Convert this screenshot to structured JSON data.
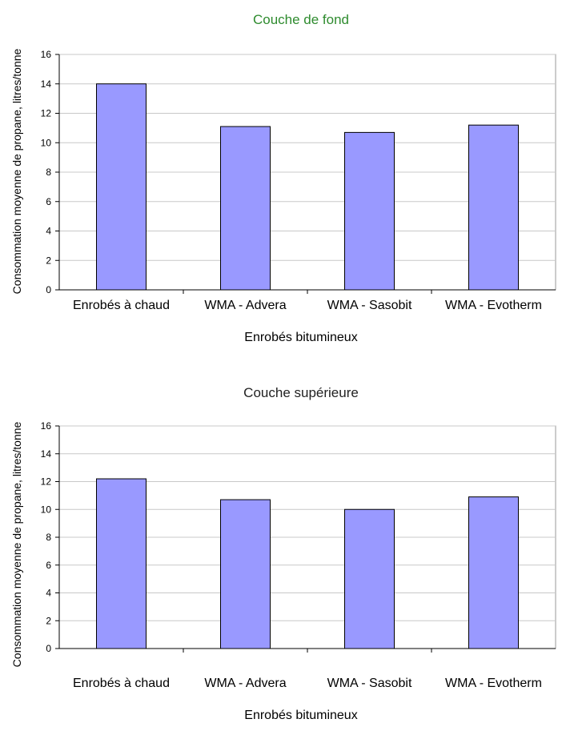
{
  "chart_data": [
    {
      "type": "bar",
      "title": "Couche de fond",
      "title_color": "#2e8b2e",
      "xlabel": "Enrobés bitumineux",
      "ylabel": "Consommation moyenne de propane, litres/tonne",
      "categories": [
        "Enrobés à chaud",
        "WMA - Advera",
        "WMA - Sasobit",
        "WMA - Evotherm"
      ],
      "values": [
        14.0,
        11.1,
        10.7,
        11.2
      ],
      "ylim": [
        0,
        16
      ],
      "yticks": [
        0,
        2,
        4,
        6,
        8,
        10,
        12,
        14,
        16
      ],
      "grid": true,
      "bar_color": "#9999ff"
    },
    {
      "type": "bar",
      "title": "Couche supérieure",
      "title_color": "#222222",
      "xlabel": "Enrobés bitumineux",
      "ylabel": "Consommation moyenne de propane, litres/tonne",
      "categories": [
        "Enrobés à chaud",
        "WMA - Advera",
        "WMA - Sasobit",
        "WMA - Evotherm"
      ],
      "values": [
        12.2,
        10.7,
        10.0,
        10.9
      ],
      "ylim": [
        0,
        16
      ],
      "yticks": [
        0,
        2,
        4,
        6,
        8,
        10,
        12,
        14,
        16
      ],
      "grid": true,
      "bar_color": "#9999ff"
    }
  ]
}
